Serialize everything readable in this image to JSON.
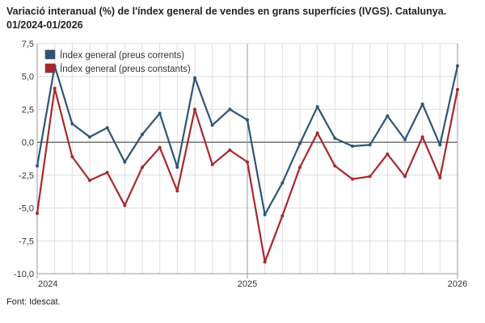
{
  "title": "Variació interanual (%) de l'índex general de vendes en grans superfícies (IVGS). Catalunya. 01/2024-01/2026",
  "source": "Font: Idescat.",
  "chart_data": {
    "type": "line",
    "title": "Variació interanual (%) de l'índex general de vendes en grans superfícies (IVGS). Catalunya. 01/2024-01/2026",
    "xlabel": "",
    "ylabel": "",
    "ylim": [
      -10,
      7.5
    ],
    "yticks": [
      7.5,
      5,
      2.5,
      0,
      -2.5,
      -5,
      -7.5,
      -10
    ],
    "ytick_labels": [
      "7,5",
      "5,0",
      "2,5",
      "0,0",
      "-2,5",
      "-5,0",
      "-7,5",
      "-10,0"
    ],
    "x": [
      "01/2024",
      "02/2024",
      "03/2024",
      "04/2024",
      "05/2024",
      "06/2024",
      "07/2024",
      "08/2024",
      "09/2024",
      "10/2024",
      "11/2024",
      "12/2024",
      "01/2025",
      "02/2025",
      "03/2025",
      "04/2025",
      "05/2025",
      "06/2025",
      "07/2025",
      "08/2025",
      "09/2025",
      "10/2025",
      "11/2025",
      "12/2025",
      "01/2026"
    ],
    "year_ticks": [
      {
        "index": 0,
        "label": "2024"
      },
      {
        "index": 12,
        "label": "2025"
      },
      {
        "index": 24,
        "label": "2026"
      }
    ],
    "grid": true,
    "legend_position": "top-left",
    "series": [
      {
        "name": "Índex general (preus corrents)",
        "color": "#2e5478",
        "values": [
          -1.8,
          5.8,
          1.4,
          0.4,
          1.1,
          -1.5,
          0.6,
          2.2,
          -1.9,
          4.9,
          1.3,
          2.5,
          1.7,
          -5.5,
          -3.1,
          -0.1,
          2.7,
          0.3,
          -0.3,
          -0.2,
          2.0,
          0.2,
          2.9,
          -0.2,
          5.8
        ]
      },
      {
        "name": "Índex general (preus constants)",
        "color": "#a8282c",
        "values": [
          -5.4,
          4.1,
          -1.1,
          -2.9,
          -2.3,
          -4.8,
          -1.9,
          -0.4,
          -3.7,
          2.5,
          -1.7,
          -0.6,
          -1.5,
          -9.1,
          -5.6,
          -1.9,
          0.7,
          -1.8,
          -2.8,
          -2.6,
          -0.9,
          -2.6,
          0.4,
          -2.7,
          4.0
        ]
      }
    ]
  }
}
